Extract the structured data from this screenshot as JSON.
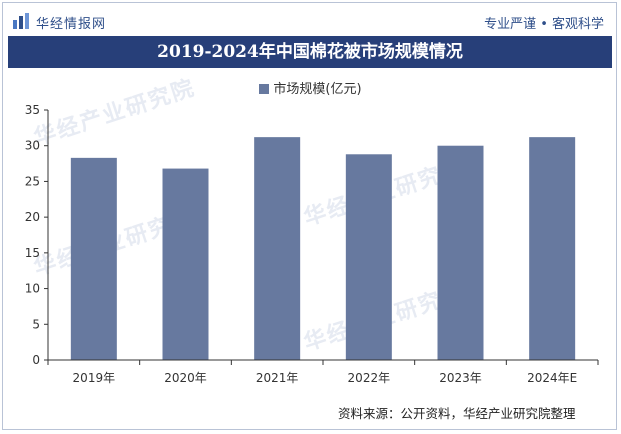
{
  "header": {
    "brand": "华经情报网",
    "slogan": "专业严谨 • 客观科学"
  },
  "title": "2019-2024年中国棉花被市场规模情况",
  "watermark": "华经产业研究院",
  "source": "资料来源：公开资料，华经产业研究院整理",
  "colors": {
    "bar": "#67799f",
    "title_bg": "#273f79",
    "accent": "#2f4f8a"
  },
  "chart_data": {
    "type": "bar",
    "categories": [
      "2019年",
      "2020年",
      "2021年",
      "2022年",
      "2023年",
      "2024年E"
    ],
    "series": [
      {
        "name": "市场规模(亿元)",
        "values": [
          28.3,
          26.8,
          31.2,
          28.8,
          30.0,
          31.2
        ]
      }
    ],
    "yticks": [
      "0",
      "5",
      "10",
      "15",
      "20",
      "25",
      "30",
      "35"
    ],
    "ylim": [
      0,
      35
    ],
    "grid": false,
    "legend": "top-center"
  }
}
